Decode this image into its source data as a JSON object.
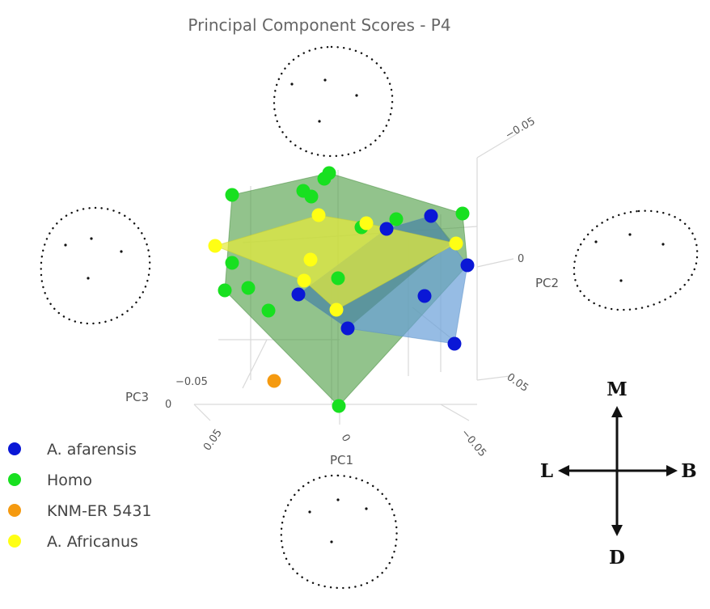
{
  "chart_data": {
    "type": "scatter",
    "title": "Principal Component Scores - P4",
    "axes": {
      "x": {
        "label": "PC1",
        "ticks": [
          "0.05",
          "0",
          "−0.05"
        ]
      },
      "y": {
        "label": "PC2",
        "ticks": [
          "−0.05",
          "0",
          "0.05"
        ]
      },
      "z": {
        "label": "PC3",
        "ticks": [
          "−0.05",
          "0"
        ]
      }
    },
    "grid": true,
    "legend_position": "bottom-left",
    "series": [
      {
        "name": "A. afarensis",
        "color": "#0a17d6",
        "hull_color": "#6d9fd0",
        "points": [
          [
            533,
            267
          ],
          [
            578,
            328
          ],
          [
            525,
            366
          ],
          [
            562,
            425
          ],
          [
            430,
            406
          ],
          [
            369,
            364
          ],
          [
            478,
            283
          ]
        ]
      },
      {
        "name": "Homo",
        "color": "#18e020",
        "hull_color": "#6fb86a",
        "points": [
          [
            407,
            214
          ],
          [
            401,
            221
          ],
          [
            375,
            236
          ],
          [
            385,
            243
          ],
          [
            287,
            241
          ],
          [
            572,
            264
          ],
          [
            490,
            271
          ],
          [
            447,
            281
          ],
          [
            287,
            325
          ],
          [
            278,
            359
          ],
          [
            307,
            356
          ],
          [
            332,
            384
          ],
          [
            419,
            502
          ],
          [
            418,
            344
          ]
        ]
      },
      {
        "name": "KNM-ER 5431",
        "color": "#f59a10",
        "points": [
          [
            339,
            471
          ]
        ]
      },
      {
        "name": "A. Africanus",
        "color": "#ffff14",
        "hull_color": "#d8e040",
        "points": [
          [
            266,
            304
          ],
          [
            394,
            266
          ],
          [
            453,
            276
          ],
          [
            564,
            301
          ],
          [
            384,
            321
          ],
          [
            376,
            347
          ],
          [
            416,
            383
          ]
        ]
      }
    ]
  },
  "compass": {
    "top": "M",
    "left": "L",
    "right": "B",
    "bottom": "D"
  }
}
